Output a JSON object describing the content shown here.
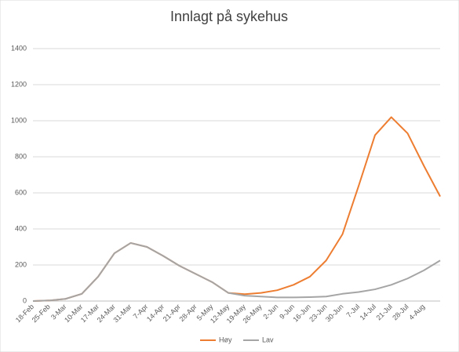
{
  "chart_data": {
    "type": "line",
    "title": "Innlagt på sykehus",
    "categories": [
      "18-Feb",
      "25-Feb",
      "3-Mar",
      "10-Mar",
      "17-Mar",
      "24-Mar",
      "31-Mar",
      "7-Apr",
      "14-Apr",
      "21-Apr",
      "28-Apr",
      "5-May",
      "12-May",
      "19-May",
      "26-May",
      "2-Jun",
      "9-Jun",
      "16-Jun",
      "23-Jun",
      "30-Jun",
      "7-Jul",
      "14-Jul",
      "21-Jul",
      "28-Jul",
      "4-Aug",
      null
    ],
    "series": [
      {
        "name": "Høy",
        "color": "#ed7d31",
        "values": [
          0,
          3,
          12,
          40,
          135,
          265,
          322,
          300,
          250,
          195,
          150,
          105,
          45,
          38,
          45,
          60,
          90,
          135,
          225,
          370,
          640,
          920,
          1020,
          930,
          750,
          580
        ]
      },
      {
        "name": "Lav",
        "color": "#a5a5a5",
        "values": [
          0,
          3,
          12,
          40,
          135,
          265,
          322,
          300,
          250,
          195,
          150,
          105,
          45,
          30,
          25,
          20,
          20,
          22,
          25,
          40,
          50,
          65,
          90,
          125,
          170,
          225
        ]
      }
    ],
    "ylim": [
      0,
      1400
    ],
    "yticks": [
      0,
      200,
      400,
      600,
      800,
      1000,
      1200,
      1400
    ],
    "grid": true,
    "legend": "bottom"
  }
}
